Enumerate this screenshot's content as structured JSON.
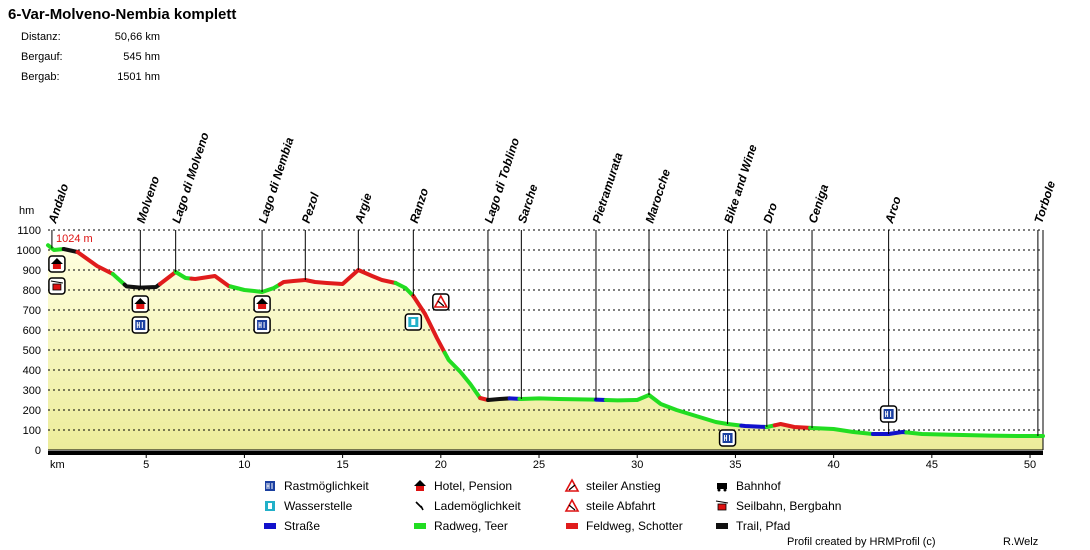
{
  "header": {
    "title": "6-Var-Molveno-Nembia komplett",
    "stats": [
      {
        "label": "Distanz:",
        "value": "50,66 km"
      },
      {
        "label": "Bergauf:",
        "value": "545 hm"
      },
      {
        "label": "Bergab:",
        "value": "1501 hm"
      }
    ]
  },
  "footer": {
    "credit": "Profil created by HRMProfil (c)",
    "author": "R.Welz"
  },
  "colors": {
    "plot_bg": "#ffffff",
    "fill_top": "#ffffe0",
    "fill_bottom": "#ecec9a",
    "radweg": "#22dd22",
    "feldweg": "#e01c1c",
    "trail": "#111111",
    "strasse": "#1111cc",
    "icon_blue": "#1a3fa0"
  },
  "chart_data": {
    "type": "area",
    "title": "",
    "xlabel": "km",
    "ylabel": "hm",
    "xlim": [
      0,
      50.66
    ],
    "ylim": [
      0,
      1100
    ],
    "x_ticks": [
      5,
      10,
      15,
      20,
      25,
      30,
      35,
      40,
      45,
      50
    ],
    "y_ticks": [
      0,
      100,
      200,
      300,
      400,
      500,
      600,
      700,
      800,
      900,
      1000,
      1100
    ],
    "grid": true,
    "max_label": "1024 m",
    "waypoints": [
      {
        "name": "Andalo",
        "km": 0.2
      },
      {
        "name": "Molveno",
        "km": 4.7
      },
      {
        "name": "Lago di Molveno",
        "km": 6.5
      },
      {
        "name": "Lago di Nembia",
        "km": 10.9
      },
      {
        "name": "Pezol",
        "km": 13.1
      },
      {
        "name": "Argie",
        "km": 15.8
      },
      {
        "name": "Ranzo",
        "km": 18.6
      },
      {
        "name": "Lago di Toblino",
        "km": 22.4
      },
      {
        "name": "Sarche",
        "km": 24.1
      },
      {
        "name": "Pietramurata",
        "km": 27.9
      },
      {
        "name": "Marocche",
        "km": 30.6
      },
      {
        "name": "Bike and Wine",
        "km": 34.6
      },
      {
        "name": "Dro",
        "km": 36.6
      },
      {
        "name": "Ceniga",
        "km": 38.9
      },
      {
        "name": "Arco",
        "km": 42.8
      },
      {
        "name": "Torbole",
        "km": 50.4
      }
    ],
    "series": [
      {
        "name": "Höhenprofil",
        "x": [
          0,
          0.3,
          0.8,
          1.5,
          2.5,
          3.3,
          4.0,
          4.7,
          5.5,
          6.5,
          7.0,
          7.5,
          8.5,
          9.2,
          10.0,
          10.5,
          10.9,
          11.5,
          12.0,
          12.5,
          13.1,
          13.6,
          14.2,
          15.0,
          15.8,
          16.5,
          17.0,
          17.7,
          18.2,
          18.6,
          19.2,
          19.8,
          20.4,
          21.0,
          21.5,
          22.0,
          22.4,
          23.0,
          23.5,
          24.1,
          25.0,
          26.0,
          27.9,
          29.0,
          30.0,
          30.6,
          31.2,
          32.0,
          33.0,
          34.0,
          34.6,
          35.5,
          36.6,
          37.3,
          38.0,
          38.9,
          40.0,
          41.0,
          42.0,
          42.8,
          43.5,
          44.5,
          46.0,
          48.0,
          49.5,
          50.66
        ],
        "values": [
          1024,
          1000,
          1005,
          990,
          920,
          880,
          818,
          812,
          815,
          890,
          860,
          855,
          870,
          820,
          800,
          795,
          790,
          810,
          840,
          845,
          850,
          840,
          835,
          830,
          900,
          870,
          850,
          835,
          810,
          770,
          680,
          560,
          450,
          390,
          330,
          260,
          250,
          255,
          258,
          255,
          258,
          255,
          252,
          248,
          250,
          275,
          230,
          200,
          170,
          140,
          130,
          120,
          115,
          130,
          115,
          110,
          105,
          90,
          80,
          80,
          90,
          80,
          76,
          72,
          70,
          70
        ]
      }
    ],
    "surface_segments": [
      {
        "from_km": 0,
        "to_km": 0.8,
        "type": "radweg"
      },
      {
        "from_km": 0.8,
        "to_km": 1.5,
        "type": "trail"
      },
      {
        "from_km": 1.5,
        "to_km": 3.3,
        "type": "feldweg"
      },
      {
        "from_km": 3.3,
        "to_km": 3.9,
        "type": "radweg"
      },
      {
        "from_km": 3.9,
        "to_km": 5.7,
        "type": "trail"
      },
      {
        "from_km": 5.7,
        "to_km": 6.5,
        "type": "feldweg"
      },
      {
        "from_km": 6.5,
        "to_km": 7.3,
        "type": "radweg"
      },
      {
        "from_km": 7.3,
        "to_km": 9.3,
        "type": "feldweg"
      },
      {
        "from_km": 9.3,
        "to_km": 11.8,
        "type": "radweg"
      },
      {
        "from_km": 11.8,
        "to_km": 17.7,
        "type": "feldweg"
      },
      {
        "from_km": 17.7,
        "to_km": 18.6,
        "type": "radweg"
      },
      {
        "from_km": 18.6,
        "to_km": 20.2,
        "type": "feldweg"
      },
      {
        "from_km": 20.2,
        "to_km": 22.0,
        "type": "radweg"
      },
      {
        "from_km": 22.0,
        "to_km": 22.4,
        "type": "feldweg"
      },
      {
        "from_km": 22.4,
        "to_km": 23.5,
        "type": "trail"
      },
      {
        "from_km": 23.5,
        "to_km": 24.0,
        "type": "strasse"
      },
      {
        "from_km": 24.0,
        "to_km": 27.9,
        "type": "radweg"
      },
      {
        "from_km": 27.9,
        "to_km": 28.4,
        "type": "strasse"
      },
      {
        "from_km": 28.4,
        "to_km": 35.3,
        "type": "radweg"
      },
      {
        "from_km": 35.3,
        "to_km": 36.6,
        "type": "strasse"
      },
      {
        "from_km": 36.6,
        "to_km": 37.0,
        "type": "radweg"
      },
      {
        "from_km": 37.0,
        "to_km": 38.8,
        "type": "feldweg"
      },
      {
        "from_km": 38.8,
        "to_km": 42.0,
        "type": "radweg"
      },
      {
        "from_km": 42.0,
        "to_km": 43.7,
        "type": "strasse"
      },
      {
        "from_km": 43.7,
        "to_km": 50.66,
        "type": "radweg"
      }
    ],
    "markers": [
      {
        "km": 0.2,
        "elev": 930,
        "icon": "hotel"
      },
      {
        "km": 0.2,
        "elev": 820,
        "icon": "seilbahn"
      },
      {
        "km": 4.7,
        "elev": 730,
        "icon": "hotel"
      },
      {
        "km": 4.7,
        "elev": 625,
        "icon": "rast"
      },
      {
        "km": 10.9,
        "elev": 730,
        "icon": "hotel"
      },
      {
        "km": 10.9,
        "elev": 625,
        "icon": "rast"
      },
      {
        "km": 18.6,
        "elev": 640,
        "icon": "wasser"
      },
      {
        "km": 20.0,
        "elev": 740,
        "icon": "abfahrt"
      },
      {
        "km": 34.6,
        "elev": 60,
        "icon": "rast"
      },
      {
        "km": 42.8,
        "elev": 180,
        "icon": "rast"
      }
    ],
    "legend": [
      {
        "icon": "rast",
        "label": "Rastmöglichkeit"
      },
      {
        "icon": "hotel",
        "label": "Hotel, Pension"
      },
      {
        "icon": "anstieg",
        "label": "steiler Anstieg"
      },
      {
        "icon": "bahnhof",
        "label": "Bahnhof"
      },
      {
        "icon": "wasser",
        "label": "Wasserstelle"
      },
      {
        "icon": "lade",
        "label": "Lademöglichkeit"
      },
      {
        "icon": "abfahrt",
        "label": "steile Abfahrt"
      },
      {
        "icon": "seilbahn",
        "label": "Seilbahn, Bergbahn"
      },
      {
        "icon": "strasse",
        "label": "Straße"
      },
      {
        "icon": "radweg",
        "label": "Radweg, Teer"
      },
      {
        "icon": "feldweg",
        "label": "Feldweg, Schotter"
      },
      {
        "icon": "trail",
        "label": "Trail, Pfad"
      }
    ],
    "legend_placement": "bottom"
  }
}
